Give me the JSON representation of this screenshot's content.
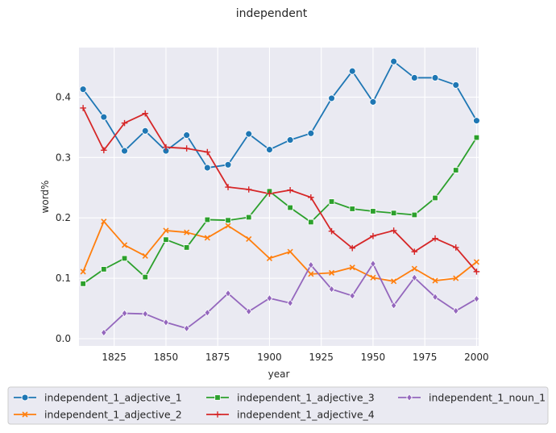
{
  "chart_data": {
    "type": "line",
    "title": "independent",
    "xlabel": "year",
    "ylabel": "word%",
    "xlim": [
      1808,
      2001
    ],
    "ylim": [
      -0.012,
      0.482
    ],
    "xticks": [
      1825,
      1850,
      1875,
      1900,
      1925,
      1950,
      1975,
      2000
    ],
    "yticks": [
      0.0,
      0.1,
      0.2,
      0.3,
      0.4
    ],
    "ytick_labels": [
      "0.0",
      "0.1",
      "0.2",
      "0.3",
      "0.4"
    ],
    "grid": true,
    "legend_placement": "bottom-center",
    "series": [
      {
        "name": "independent_1_adjective_1",
        "color": "#1f77b4",
        "marker": "circle",
        "x": [
          1810,
          1820,
          1830,
          1840,
          1850,
          1860,
          1870,
          1880,
          1890,
          1900,
          1910,
          1920,
          1930,
          1940,
          1950,
          1960,
          1970,
          1980,
          1990,
          2000
        ],
        "y": [
          0.413,
          0.367,
          0.311,
          0.344,
          0.311,
          0.337,
          0.283,
          0.288,
          0.339,
          0.313,
          0.329,
          0.34,
          0.398,
          0.443,
          0.392,
          0.459,
          0.432,
          0.432,
          0.42,
          0.361
        ]
      },
      {
        "name": "independent_1_adjective_2",
        "color": "#ff7f0e",
        "marker": "x",
        "x": [
          1810,
          1820,
          1830,
          1840,
          1850,
          1860,
          1870,
          1880,
          1890,
          1900,
          1910,
          1920,
          1930,
          1940,
          1950,
          1960,
          1970,
          1980,
          1990,
          2000
        ],
        "y": [
          0.111,
          0.194,
          0.155,
          0.137,
          0.179,
          0.176,
          0.167,
          0.187,
          0.165,
          0.133,
          0.144,
          0.107,
          0.109,
          0.118,
          0.101,
          0.095,
          0.116,
          0.096,
          0.1,
          0.127
        ]
      },
      {
        "name": "independent_1_adjective_3",
        "color": "#2ca02c",
        "marker": "square",
        "x": [
          1810,
          1820,
          1830,
          1840,
          1850,
          1860,
          1870,
          1880,
          1890,
          1900,
          1910,
          1920,
          1930,
          1940,
          1950,
          1960,
          1970,
          1980,
          1990,
          2000
        ],
        "y": [
          0.091,
          0.115,
          0.133,
          0.102,
          0.164,
          0.151,
          0.197,
          0.196,
          0.201,
          0.244,
          0.217,
          0.193,
          0.227,
          0.215,
          0.211,
          0.208,
          0.205,
          0.233,
          0.279,
          0.333
        ]
      },
      {
        "name": "independent_1_adjective_4",
        "color": "#d62728",
        "marker": "plus",
        "x": [
          1810,
          1820,
          1830,
          1840,
          1850,
          1860,
          1870,
          1880,
          1890,
          1900,
          1910,
          1920,
          1930,
          1940,
          1950,
          1960,
          1970,
          1980,
          1990,
          2000
        ],
        "y": [
          0.382,
          0.312,
          0.357,
          0.373,
          0.317,
          0.315,
          0.309,
          0.251,
          0.247,
          0.24,
          0.246,
          0.234,
          0.178,
          0.15,
          0.17,
          0.179,
          0.144,
          0.166,
          0.151,
          0.111
        ]
      },
      {
        "name": "independent_1_noun_1",
        "color": "#9467bd",
        "marker": "diamond",
        "x": [
          1820,
          1830,
          1840,
          1850,
          1860,
          1870,
          1880,
          1890,
          1900,
          1910,
          1920,
          1930,
          1940,
          1950,
          1960,
          1970,
          1980,
          1990,
          2000
        ],
        "y": [
          0.01,
          0.042,
          0.041,
          0.027,
          0.017,
          0.043,
          0.075,
          0.045,
          0.067,
          0.059,
          0.122,
          0.082,
          0.071,
          0.124,
          0.055,
          0.101,
          0.069,
          0.046,
          0.066
        ]
      }
    ]
  }
}
